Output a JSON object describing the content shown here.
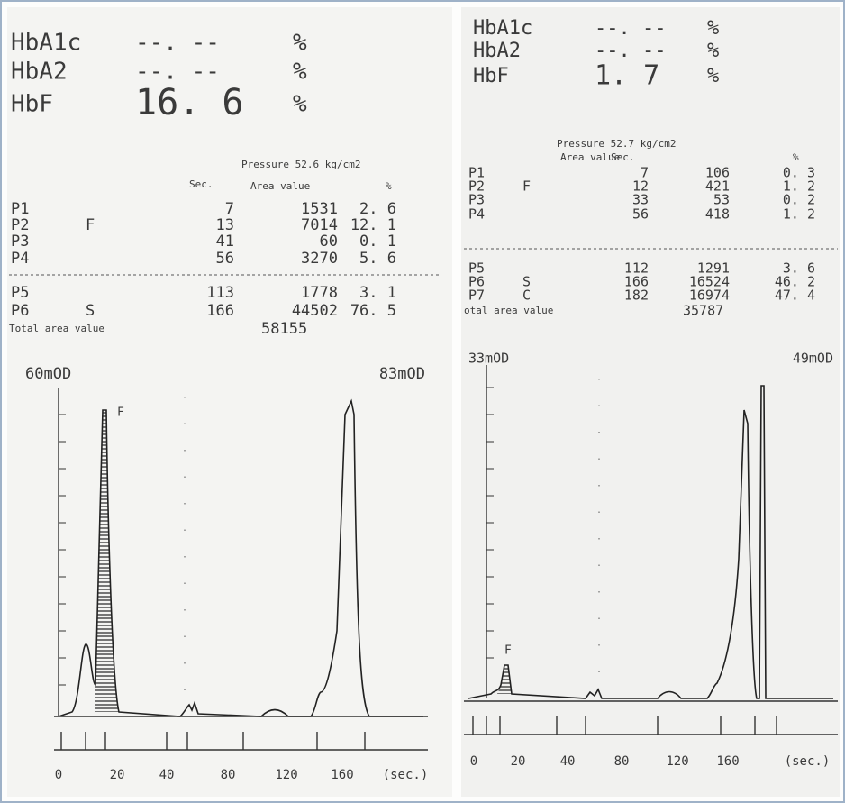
{
  "panels": [
    {
      "results": [
        {
          "name": "HbA1c",
          "value": "--. --",
          "unit": "%"
        },
        {
          "name": "HbA2",
          "value": "--. --",
          "unit": "%"
        },
        {
          "name": "HbF",
          "value": "16. 6",
          "unit": "%"
        }
      ],
      "pressure": "Pressure 52.6 kg/cm2",
      "columns": [
        "Sec.",
        "Area value",
        "%"
      ],
      "rows": [
        {
          "peak": "P1",
          "sec": "7",
          "area": "1531",
          "pct": "2. 6"
        },
        {
          "peak": "P2",
          "type": "F",
          "sec": "13",
          "area": "7014",
          "pct": "12. 1"
        },
        {
          "peak": "P3",
          "sec": "41",
          "area": "60",
          "pct": "0. 1"
        },
        {
          "peak": "P4",
          "sec": "56",
          "area": "3270",
          "pct": "5. 6"
        },
        {
          "peak": "P5",
          "sec": "113",
          "area": "1778",
          "pct": "3. 1"
        },
        {
          "peak": "P6",
          "type": "S",
          "sec": "166",
          "area": "44502",
          "pct": "76. 5"
        }
      ],
      "total_label": "Total area value",
      "total": "58155",
      "scale_left": "60mOD",
      "scale_right": "83mOD",
      "peak_label": "F",
      "x_labels": [
        "0",
        "20",
        "40",
        "80",
        "120",
        "160",
        "(sec.)"
      ]
    },
    {
      "results": [
        {
          "name": "HbA1c",
          "value": "--. --",
          "unit": "%"
        },
        {
          "name": "HbA2",
          "value": "--. --",
          "unit": "%"
        },
        {
          "name": "HbF",
          "value": "1. 7",
          "unit": "%"
        }
      ],
      "pressure": "Pressure 52.7 kg/cm2",
      "columns": [
        "Sec.",
        "Area value",
        "%"
      ],
      "rows": [
        {
          "peak": "P1",
          "sec": "7",
          "area": "106",
          "pct": "0. 3"
        },
        {
          "peak": "P2",
          "type": "F",
          "sec": "12",
          "area": "421",
          "pct": "1. 2"
        },
        {
          "peak": "P3",
          "sec": "33",
          "area": "53",
          "pct": "0. 2"
        },
        {
          "peak": "P4",
          "sec": "56",
          "area": "418",
          "pct": "1. 2"
        },
        {
          "peak": "P5",
          "sec": "112",
          "area": "1291",
          "pct": "3. 6"
        },
        {
          "peak": "P6",
          "type": "S",
          "sec": "166",
          "area": "16524",
          "pct": "46. 2"
        },
        {
          "peak": "P7",
          "type": "C",
          "sec": "182",
          "area": "16974",
          "pct": "47. 4"
        }
      ],
      "total_label": "otal area value",
      "total": "35787",
      "scale_left": "33mOD",
      "scale_right": "49mOD",
      "peak_label": "F",
      "x_labels": [
        "0",
        "20",
        "40",
        "80",
        "120",
        "160",
        "(sec.)"
      ]
    }
  ]
}
